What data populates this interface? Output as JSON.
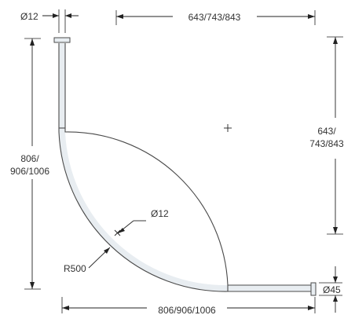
{
  "dimensions": {
    "rod_diameter": "Ø12",
    "top_width": "643/743/843",
    "right_height_line1": "643/",
    "right_height_line2": "743/843",
    "left_height_line1": "806/",
    "left_height_line2": "906/1006",
    "bottom_width": "806/906/1006",
    "radius": "R500",
    "curve_diameter": "Ø12",
    "flange_diameter": "Ø45"
  },
  "colors": {
    "line": "#222222",
    "rail_stroke": "#4a4a4a",
    "rail_fill": "#e8edf1",
    "text": "#333333"
  }
}
